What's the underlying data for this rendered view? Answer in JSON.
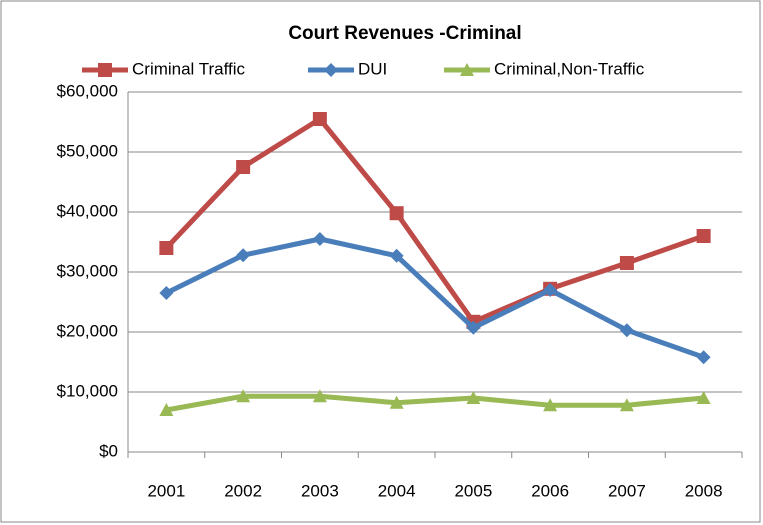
{
  "chart_data": {
    "type": "line",
    "title": "Court Revenues -Criminal",
    "categories": [
      "2001",
      "2002",
      "2003",
      "2004",
      "2005",
      "2006",
      "2007",
      "2008"
    ],
    "series": [
      {
        "name": "Criminal Traffic",
        "color": "#be4b48",
        "marker": "square",
        "values": [
          34000,
          47500,
          55500,
          39800,
          21700,
          27200,
          31500,
          36000
        ]
      },
      {
        "name": "DUI",
        "color": "#4a7ebb",
        "marker": "diamond",
        "values": [
          26500,
          32800,
          35500,
          32700,
          20700,
          27000,
          20300,
          15800
        ]
      },
      {
        "name": "Criminal,Non-Traffic",
        "color": "#98b954",
        "marker": "triangle",
        "values": [
          7000,
          9300,
          9300,
          8200,
          9000,
          7800,
          7800,
          9000
        ]
      }
    ],
    "ylim": [
      0,
      60000
    ],
    "yticks": [
      {
        "value": 0,
        "label": "$0"
      },
      {
        "value": 10000,
        "label": "$10,000"
      },
      {
        "value": 20000,
        "label": "$20,000"
      },
      {
        "value": 30000,
        "label": "$30,000"
      },
      {
        "value": 40000,
        "label": "$40,000"
      },
      {
        "value": 50000,
        "label": "$50,000"
      },
      {
        "value": 60000,
        "label": "$60,000"
      }
    ],
    "grid": true,
    "legend": "top"
  }
}
